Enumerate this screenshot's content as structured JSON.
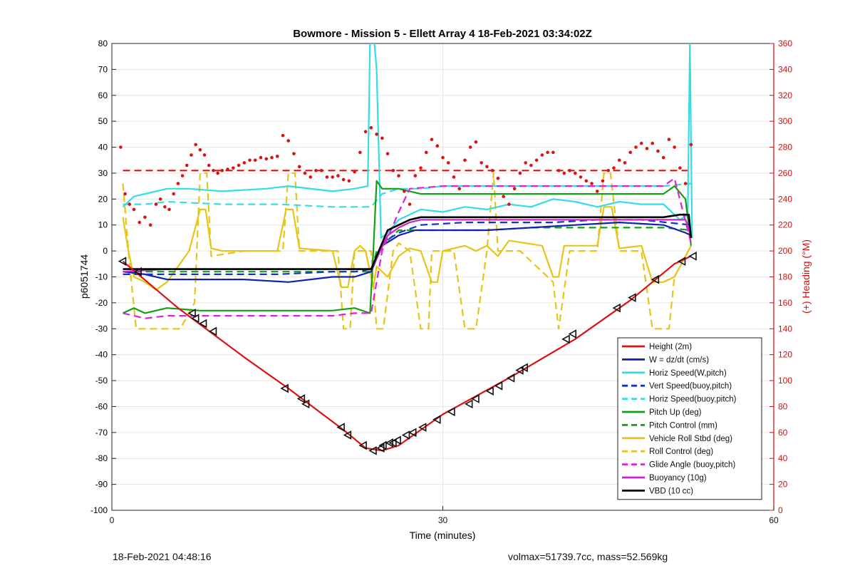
{
  "footer": {
    "left": "18-Feb-2021 04:48:16",
    "right": "volmax=51739.7cc, mass=52.569kg"
  },
  "chart_data": {
    "type": "line",
    "title": "Bowmore - Mission 5 - Ellett Array 4 18-Feb-2021 03:34:02Z",
    "xlabel": "Time (minutes)",
    "ylabel_left": "p6051744",
    "ylabel_right": "(+) Heading (°M)",
    "xlim": [
      0,
      60
    ],
    "ylim_left": [
      -100,
      80
    ],
    "ylim_right": [
      0,
      360
    ],
    "xticks": [
      0,
      30,
      60
    ],
    "yticks_left": [
      -100,
      -90,
      -80,
      -70,
      -60,
      -50,
      -40,
      -30,
      -20,
      -10,
      0,
      10,
      20,
      30,
      40,
      50,
      60,
      70,
      80
    ],
    "yticks_right": [
      0,
      20,
      40,
      60,
      80,
      100,
      120,
      140,
      160,
      180,
      200,
      220,
      240,
      260,
      280,
      300,
      320,
      340,
      360
    ],
    "grid": true,
    "legend_position": "bottom-right",
    "colors": {
      "axis_left": "#000000",
      "axis_right": "#d01010",
      "grid": "#e6e6e6"
    },
    "series": [
      {
        "name": "Height (2m)",
        "color": "#dd1111",
        "dash": "solid",
        "width": 2.2,
        "x": [
          1,
          6,
          12,
          16,
          21,
          23,
          24.5,
          26,
          30,
          36,
          42,
          47,
          51,
          52.5
        ],
        "y": [
          -4,
          -22,
          -41,
          -53,
          -69,
          -76,
          -77,
          -75,
          -63,
          -49,
          -34,
          -19,
          -5,
          -2
        ]
      },
      {
        "name": "W = dz/dt (cm/s)",
        "color": "#1020b0",
        "dash": "solid",
        "width": 2.2,
        "x": [
          1,
          3,
          5,
          8,
          12,
          16,
          20,
          22,
          23.5,
          24.5,
          26,
          27.5,
          30,
          34,
          38,
          42,
          46,
          50,
          52,
          52.5
        ],
        "y": [
          -8,
          -9,
          -11,
          -11,
          -11,
          -12,
          -10,
          -10,
          -8,
          2,
          6,
          8,
          8,
          8,
          9,
          10,
          11,
          10,
          7,
          6
        ]
      },
      {
        "name": "Horiz Speed(W,pitch)",
        "color": "#33dde8",
        "dash": "solid",
        "width": 2.2,
        "x": [
          1,
          2,
          3,
          5,
          7,
          10,
          14,
          16,
          20,
          22,
          23.2,
          23.4,
          23.8,
          24,
          24.4,
          25,
          26,
          28,
          30,
          32,
          34,
          36,
          38,
          40,
          42,
          44,
          46,
          48,
          50,
          51.5,
          52.2,
          52.4,
          52.6
        ],
        "y": [
          17,
          21,
          22,
          24,
          24,
          23,
          24,
          25,
          23,
          24,
          25,
          80,
          80,
          70,
          5,
          7,
          12,
          16,
          15,
          17,
          16,
          18,
          17,
          20,
          19,
          17,
          19,
          18,
          18,
          12,
          14,
          80,
          5
        ]
      },
      {
        "name": "Vert Speed(buoy,pitch)",
        "color": "#1030d0",
        "dash": "dashed",
        "width": 2.2,
        "x": [
          1,
          5,
          10,
          15,
          20,
          22,
          23.5,
          24.5,
          26,
          28,
          32,
          36,
          40,
          44,
          48,
          52.5
        ],
        "y": [
          -9,
          -9,
          -9,
          -9,
          -8,
          -8,
          -7,
          3,
          7,
          10,
          11,
          11,
          11,
          12,
          12,
          10
        ]
      },
      {
        "name": "Horiz Speed(buoy,pitch)",
        "color": "#33dde8",
        "dash": "dashed",
        "width": 2.2,
        "x": [
          1,
          3,
          5,
          10,
          15,
          20,
          22,
          23.5,
          24.5,
          26,
          28,
          30,
          34,
          38,
          42,
          46,
          50,
          52.5
        ],
        "y": [
          18,
          18,
          19,
          18,
          18,
          17,
          17,
          17,
          22,
          24,
          24,
          25,
          25,
          25,
          25,
          25,
          25,
          26
        ]
      },
      {
        "name": "Pitch Up (deg)",
        "color": "#12a012",
        "dash": "solid",
        "width": 2.2,
        "x": [
          1,
          2,
          3,
          5,
          8,
          12,
          16,
          20,
          22,
          23.4,
          23.7,
          24,
          24.5,
          26,
          28,
          30,
          34,
          38,
          42,
          46,
          50,
          51,
          52,
          52.5
        ],
        "y": [
          -24,
          -22,
          -24,
          -22,
          -23,
          -23,
          -23,
          -23,
          -22,
          -24,
          0,
          27,
          24,
          24,
          22,
          22,
          22,
          22,
          22,
          22,
          22,
          25,
          20,
          2
        ]
      },
      {
        "name": "Pitch Control (mm)",
        "color": "#12a012",
        "dash": "dashed",
        "width": 2.2,
        "x": [
          1,
          5,
          10,
          15,
          20,
          22,
          23.5,
          24,
          24.5,
          26,
          28,
          30,
          34,
          38,
          42,
          46,
          50,
          52.5
        ],
        "y": [
          -8,
          -8,
          -8,
          -8,
          -8,
          -8,
          -8,
          0,
          2,
          8,
          8,
          8,
          8,
          9,
          9,
          9,
          9,
          8
        ]
      },
      {
        "name": "Vehicle Roll Stbd (deg)",
        "color": "#e6c419",
        "dash": "solid",
        "width": 2.2,
        "x": [
          1,
          1.5,
          2,
          3,
          4,
          5,
          7,
          8,
          8.5,
          9,
          10,
          15,
          15.8,
          16.4,
          17,
          20,
          20.8,
          21.4,
          22,
          22.5,
          23,
          23.7,
          24,
          25,
          26,
          27,
          28,
          29,
          29.5,
          30,
          32,
          33,
          34,
          35,
          36,
          39,
          40,
          40.5,
          41,
          44,
          44.6,
          45.3,
          46,
          48,
          49,
          50,
          51,
          52.5
        ],
        "y": [
          13,
          0,
          -10,
          -12,
          -15,
          -12,
          0,
          16,
          16,
          1,
          0,
          0,
          16,
          16,
          1,
          0,
          -14,
          -14,
          0,
          2,
          0,
          -14,
          -6,
          -10,
          -2,
          1,
          0,
          -12,
          -12,
          0,
          2,
          0,
          2,
          -2,
          4,
          2,
          -10,
          -10,
          2,
          2,
          17,
          17,
          1,
          2,
          -12,
          -12,
          -10,
          2
        ]
      },
      {
        "name": "Roll Control (deg)",
        "color": "#e6c419",
        "dash": "dashed",
        "width": 2.2,
        "x": [
          1,
          1.6,
          2.2,
          4,
          5,
          6.2,
          7.5,
          8,
          8.6,
          9,
          12,
          15.5,
          16,
          16.6,
          17,
          20.5,
          21,
          21.6,
          22,
          23.5,
          24,
          24.6,
          25.5,
          26,
          27,
          28,
          28.7,
          29,
          30,
          31,
          32,
          33,
          34,
          34.6,
          35,
          37,
          40,
          40.5,
          41.5,
          44,
          44.6,
          45.2,
          46,
          48,
          49,
          50.5,
          51,
          52.5
        ],
        "y": [
          26,
          -5,
          -30,
          -30,
          -30,
          -30,
          -20,
          30,
          30,
          -2,
          0,
          0,
          30,
          30,
          0,
          0,
          -30,
          -30,
          0,
          0,
          -30,
          -30,
          0,
          3,
          0,
          -30,
          -30,
          0,
          0,
          0,
          -30,
          -30,
          0,
          30,
          0,
          0,
          -12,
          -30,
          0,
          0,
          30,
          30,
          0,
          0,
          -30,
          -30,
          -10,
          2
        ]
      },
      {
        "name": "Glide Angle (buoy,pitch)",
        "color": "#dd22dd",
        "dash": "dashed",
        "width": 2.2,
        "x": [
          1,
          3,
          5,
          8,
          10,
          15,
          20,
          22,
          23.5,
          24.5,
          26,
          27,
          30,
          34,
          38,
          42,
          46,
          50,
          51,
          52.5
        ],
        "y": [
          -24,
          -26,
          -25,
          -25,
          -25,
          -25,
          -25,
          -24,
          -24,
          0,
          15,
          24,
          25,
          25,
          25,
          25,
          25,
          25,
          28,
          3
        ]
      },
      {
        "name": "Buoyancy (10g)",
        "color": "#cc22cc",
        "dash": "solid",
        "width": 2.2,
        "x": [
          1,
          5,
          10,
          15,
          20,
          22,
          23.5,
          24,
          25,
          26,
          27,
          28,
          30,
          34,
          38,
          42,
          46,
          50,
          52,
          52.5
        ],
        "y": [
          -8,
          -7,
          -7,
          -7,
          -7,
          -7,
          -7,
          -3,
          6,
          9,
          11,
          12,
          12,
          12,
          12,
          12,
          12,
          12,
          12,
          6
        ]
      },
      {
        "name": "VBD (10 cc)",
        "color": "#000000",
        "dash": "solid",
        "width": 2.6,
        "x": [
          1,
          5,
          10,
          15,
          20,
          22,
          23.5,
          24,
          25,
          26,
          27,
          28,
          30,
          34,
          38,
          42,
          46,
          50,
          51.5,
          52.3,
          52.5
        ],
        "y": [
          -7,
          -7,
          -7,
          -7,
          -7,
          -7,
          -7,
          -2,
          8,
          10,
          12,
          13,
          13,
          13,
          13,
          13,
          13,
          13,
          14,
          14,
          5
        ]
      }
    ],
    "heading_reference": {
      "y_right": 262,
      "color": "#dd1111",
      "dash": "dashed",
      "x_range": [
        1,
        52.5
      ]
    },
    "heading_points": {
      "axis": "right",
      "color": "#dd1111",
      "x": [
        0.8,
        1.2,
        1.6,
        2.0,
        2.5,
        3.0,
        3.5,
        4.0,
        4.4,
        4.8,
        5.2,
        5.6,
        6.0,
        6.4,
        6.8,
        7.2,
        7.6,
        8.0,
        8.4,
        8.8,
        9.2,
        9.6,
        10.0,
        10.5,
        11.0,
        11.5,
        12.0,
        12.5,
        13.0,
        13.5,
        14.0,
        14.5,
        15.0,
        15.5,
        16.0,
        16.5,
        17.0,
        17.5,
        18.0,
        18.5,
        19.0,
        19.5,
        20.0,
        20.5,
        21.0,
        21.5,
        22.0,
        22.5,
        23.0,
        23.5,
        24.0,
        24.5,
        25.0,
        25.5,
        26.0,
        26.5,
        27.0,
        27.5,
        28.0,
        28.5,
        29.0,
        29.5,
        30.0,
        30.5,
        31.0,
        31.5,
        32.0,
        32.5,
        33.0,
        33.5,
        34.0,
        34.5,
        35.0,
        35.5,
        36.0,
        36.5,
        37.0,
        37.5,
        38.0,
        38.5,
        39.0,
        39.5,
        40.0,
        40.5,
        41.0,
        41.5,
        42.0,
        42.5,
        43.0,
        43.5,
        44.0,
        44.5,
        45.0,
        45.5,
        46.0,
        46.5,
        47.0,
        47.5,
        48.0,
        48.5,
        49.0,
        49.5,
        50.0,
        50.5,
        51.0,
        51.5,
        52.0,
        52.5
      ],
      "y": [
        280,
        244,
        236,
        232,
        222,
        226,
        220,
        236,
        240,
        234,
        232,
        244,
        252,
        258,
        266,
        274,
        282,
        278,
        274,
        266,
        262,
        260,
        262,
        263,
        264,
        266,
        268,
        270,
        270,
        272,
        271,
        272,
        273,
        289,
        285,
        275,
        265,
        260,
        257,
        262,
        262,
        257,
        257,
        258,
        255,
        254,
        261,
        276,
        292,
        295,
        290,
        287,
        275,
        262,
        258,
        246,
        236,
        258,
        264,
        276,
        286,
        281,
        272,
        268,
        257,
        248,
        270,
        280,
        284,
        268,
        265,
        262,
        256,
        242,
        236,
        248,
        260,
        268,
        266,
        270,
        274,
        276,
        276,
        262,
        260,
        262,
        260,
        257,
        254,
        252,
        246,
        254,
        262,
        264,
        270,
        268,
        276,
        280,
        283,
        279,
        283,
        277,
        272,
        286,
        280,
        264,
        252,
        282
      ]
    },
    "height_markers": {
      "shape": "triangle-left",
      "x": [
        1,
        2.4,
        7.3,
        7.6,
        8.3,
        9.2,
        15.7,
        17.2,
        17.6,
        20.8,
        21.4,
        22.8,
        23.7,
        24.4,
        24.6,
        25.2,
        25.5,
        25.9,
        26.7,
        27.3,
        28.2,
        29.5,
        30.8,
        32.4,
        33.0,
        34.3,
        35.1,
        36.2,
        37.0,
        37.4,
        41.2,
        41.8,
        45.8,
        47.2,
        49.3,
        51.7,
        52.7
      ],
      "y": [
        -4,
        -8,
        -24,
        -26,
        -28,
        -31,
        -53,
        -57,
        -59,
        -68,
        -71,
        -75,
        -77,
        -76,
        -75,
        -74,
        -74,
        -73,
        -71,
        -70,
        -68,
        -65,
        -62,
        -59,
        -57,
        -54,
        -52,
        -49,
        -46,
        -45,
        -34,
        -32,
        -22,
        -18,
        -11,
        -4,
        -2
      ]
    }
  },
  "legend_labels": [
    "Height (2m)",
    "W = dz/dt (cm/s)",
    "Horiz Speed(W,pitch)",
    "Vert Speed(buoy,pitch)",
    "Horiz Speed(buoy,pitch)",
    "Pitch Up (deg)",
    "Pitch Control (mm)",
    "Vehicle Roll Stbd (deg)",
    "Roll Control (deg)",
    "Glide Angle (buoy,pitch)",
    "Buoyancy (10g)",
    "VBD (10 cc)"
  ]
}
